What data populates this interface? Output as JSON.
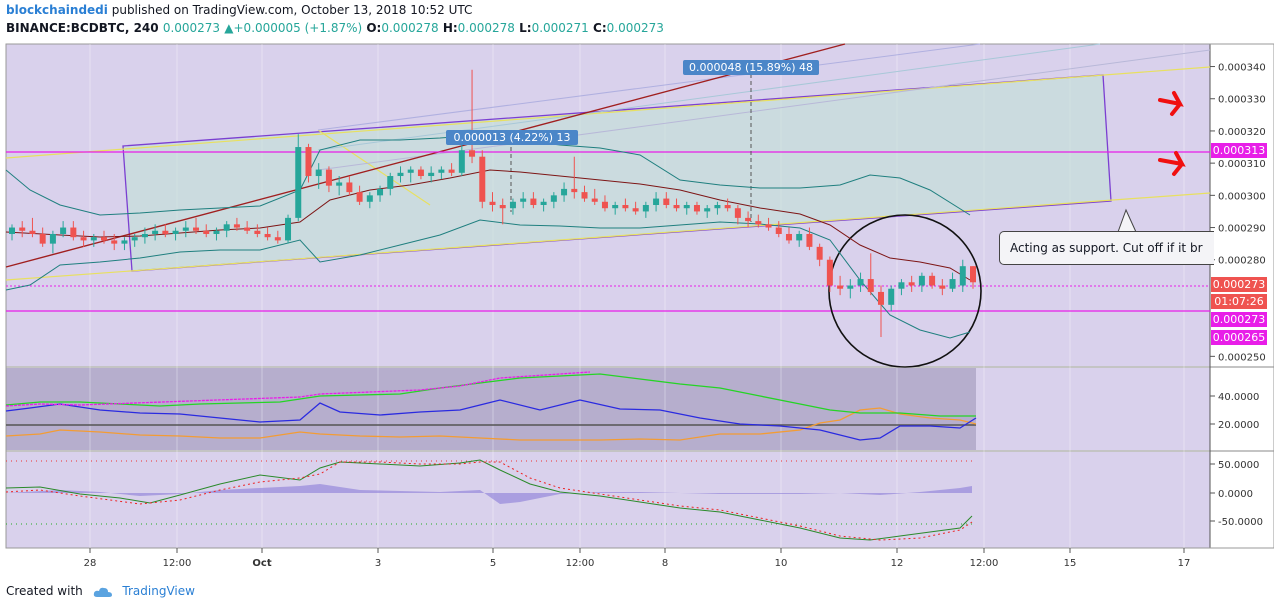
{
  "header": {
    "author": "blockchaindedi",
    "published_text": "published on TradingView.com, October 13, 2018 10:52 UTC",
    "symbol": "BINANCE:BCDBTC, 240",
    "last": "0.000273",
    "change": "+0.000005 (+1.87%)",
    "o_label": "O:",
    "o_value": "0.000278",
    "h_label": "H:",
    "h_value": "0.000278",
    "l_label": "L:",
    "l_value": "0.000271",
    "c_label": "C:",
    "c_value": "0.000273"
  },
  "footer": {
    "created_with": "Created with",
    "brand": "TradingView"
  },
  "annotations": {
    "callout": "Acting as support. Cut off if it br",
    "measure_top": "0.000048 (15.89%) 48",
    "measure_mid": "0.000013 (4.22%) 13"
  },
  "price_badges": {
    "line_313": "0.000313",
    "last": "0.000273",
    "countdown": "01:07:26",
    "line_273": "0.000273",
    "low": "0.000265"
  },
  "colors": {
    "up": "#26a69a",
    "down": "#ef5350",
    "magenta": "#e81ee8",
    "bg": "#d9d1ec"
  },
  "chart_data": {
    "type": "candlestick",
    "title": "",
    "xaxis": {
      "tick_labels": [
        "28",
        "12:00",
        "Oct",
        "3",
        "5",
        "12:00",
        "8",
        "10",
        "12",
        "12:00",
        "15",
        "17"
      ]
    },
    "yaxis": {
      "range": [
        0.000247,
        0.000347
      ],
      "tick_labels": [
        "0.000340",
        "0.000330",
        "0.000320",
        "0.000310",
        "0.000300",
        "0.000290",
        "0.000280",
        "0.000250"
      ]
    },
    "horizontal_levels": [
      0.000313,
      0.000273
    ],
    "series": [
      {
        "name": "BCDBTC",
        "ohlc": [
          [
            0.000288,
            0.000291,
            0.000286,
            0.00029
          ],
          [
            0.00029,
            0.000292,
            0.000287,
            0.000289
          ],
          [
            0.000289,
            0.000293,
            0.000287,
            0.000288
          ],
          [
            0.000288,
            0.00029,
            0.000284,
            0.000285
          ],
          [
            0.000285,
            0.000289,
            0.000282,
            0.000288
          ],
          [
            0.000288,
            0.000292,
            0.000287,
            0.00029
          ],
          [
            0.00029,
            0.000292,
            0.000286,
            0.000287
          ],
          [
            0.000287,
            0.000289,
            0.000284,
            0.000286
          ],
          [
            0.000286,
            0.000288,
            0.000284,
            0.000287
          ],
          [
            0.000287,
            0.000289,
            0.000285,
            0.000286
          ],
          [
            0.000286,
            0.000288,
            0.000283,
            0.000285
          ],
          [
            0.000285,
            0.000287,
            0.000283,
            0.000286
          ],
          [
            0.000286,
            0.000288,
            0.000284,
            0.000287
          ],
          [
            0.000287,
            0.00029,
            0.000285,
            0.000288
          ],
          [
            0.000288,
            0.000291,
            0.000286,
            0.000289
          ],
          [
            0.000289,
            0.000291,
            0.000287,
            0.000288
          ],
          [
            0.000288,
            0.00029,
            0.000286,
            0.000289
          ],
          [
            0.000289,
            0.000292,
            0.000287,
            0.00029
          ],
          [
            0.00029,
            0.000293,
            0.000288,
            0.000289
          ],
          [
            0.000289,
            0.000291,
            0.000287,
            0.000288
          ],
          [
            0.000288,
            0.00029,
            0.000286,
            0.000289
          ],
          [
            0.000289,
            0.000292,
            0.000287,
            0.000291
          ],
          [
            0.000291,
            0.000293,
            0.000289,
            0.00029
          ],
          [
            0.00029,
            0.000292,
            0.000288,
            0.000289
          ],
          [
            0.000289,
            0.000291,
            0.000287,
            0.000288
          ],
          [
            0.000288,
            0.00029,
            0.000286,
            0.000287
          ],
          [
            0.000287,
            0.000289,
            0.000285,
            0.000286
          ],
          [
            0.000286,
            0.000294,
            0.000285,
            0.000293
          ],
          [
            0.000293,
            0.000319,
            0.000292,
            0.000315
          ],
          [
            0.000315,
            0.000316,
            0.000304,
            0.000306
          ],
          [
            0.000306,
            0.00031,
            0.000302,
            0.000308
          ],
          [
            0.000308,
            0.000309,
            0.000301,
            0.000303
          ],
          [
            0.000303,
            0.000306,
            0.0003,
            0.000304
          ],
          [
            0.000304,
            0.000306,
            0.0003,
            0.000301
          ],
          [
            0.000301,
            0.000303,
            0.000297,
            0.000298
          ],
          [
            0.000298,
            0.000301,
            0.000296,
            0.0003
          ],
          [
            0.0003,
            0.000303,
            0.000298,
            0.000302
          ],
          [
            0.000302,
            0.000307,
            0.0003,
            0.000306
          ],
          [
            0.000306,
            0.000309,
            0.000304,
            0.000307
          ],
          [
            0.000307,
            0.000309,
            0.000304,
            0.000308
          ],
          [
            0.000308,
            0.000309,
            0.000305,
            0.000306
          ],
          [
            0.000306,
            0.000309,
            0.000304,
            0.000307
          ],
          [
            0.000307,
            0.000309,
            0.000305,
            0.000308
          ],
          [
            0.000308,
            0.00031,
            0.000306,
            0.000307
          ],
          [
            0.000307,
            0.00032,
            0.000306,
            0.000314
          ],
          [
            0.000314,
            0.000339,
            0.00031,
            0.000312
          ],
          [
            0.000312,
            0.000314,
            0.000296,
            0.000298
          ],
          [
            0.000298,
            0.000301,
            0.000295,
            0.000297
          ],
          [
            0.000297,
            0.000299,
            0.000291,
            0.000296
          ],
          [
            0.000296,
            0.000299,
            0.000294,
            0.000298
          ],
          [
            0.000298,
            0.000301,
            0.000296,
            0.000299
          ],
          [
            0.000299,
            0.000301,
            0.000296,
            0.000297
          ],
          [
            0.000297,
            0.000299,
            0.000295,
            0.000298
          ],
          [
            0.000298,
            0.000301,
            0.000296,
            0.0003
          ],
          [
            0.0003,
            0.000304,
            0.000298,
            0.000302
          ],
          [
            0.000302,
            0.000312,
            0.000299,
            0.000301
          ],
          [
            0.000301,
            0.000303,
            0.000298,
            0.000299
          ],
          [
            0.000299,
            0.000302,
            0.000297,
            0.000298
          ],
          [
            0.000298,
            0.0003,
            0.000295,
            0.000296
          ],
          [
            0.000296,
            0.000298,
            0.000294,
            0.000297
          ],
          [
            0.000297,
            0.000299,
            0.000295,
            0.000296
          ],
          [
            0.000296,
            0.000298,
            0.000294,
            0.000295
          ],
          [
            0.000295,
            0.000298,
            0.000293,
            0.000297
          ],
          [
            0.000297,
            0.000301,
            0.000295,
            0.000299
          ],
          [
            0.000299,
            0.000301,
            0.000296,
            0.000297
          ],
          [
            0.000297,
            0.000299,
            0.000295,
            0.000296
          ],
          [
            0.000296,
            0.000298,
            0.000294,
            0.000297
          ],
          [
            0.000297,
            0.000298,
            0.000294,
            0.000295
          ],
          [
            0.000295,
            0.000297,
            0.000293,
            0.000296
          ],
          [
            0.000296,
            0.000298,
            0.000294,
            0.000297
          ],
          [
            0.000297,
            0.000299,
            0.000295,
            0.000296
          ],
          [
            0.000296,
            0.000297,
            0.000291,
            0.000293
          ],
          [
            0.000293,
            0.000295,
            0.00029,
            0.000292
          ],
          [
            0.000292,
            0.000294,
            0.00029,
            0.000291
          ],
          [
            0.000291,
            0.000293,
            0.000289,
            0.00029
          ],
          [
            0.00029,
            0.000292,
            0.000287,
            0.000288
          ],
          [
            0.000288,
            0.00029,
            0.000285,
            0.000286
          ],
          [
            0.000286,
            0.000289,
            0.000284,
            0.000288
          ],
          [
            0.000288,
            0.00029,
            0.000283,
            0.000284
          ],
          [
            0.000284,
            0.000285,
            0.000278,
            0.00028
          ],
          [
            0.00028,
            0.000281,
            0.00027,
            0.000272
          ],
          [
            0.000272,
            0.000275,
            0.000269,
            0.000271
          ],
          [
            0.000271,
            0.000274,
            0.000268,
            0.000272
          ],
          [
            0.000272,
            0.000276,
            0.00027,
            0.000274
          ],
          [
            0.000274,
            0.000282,
            0.000269,
            0.00027
          ],
          [
            0.00027,
            0.000272,
            0.000256,
            0.000266
          ],
          [
            0.000266,
            0.000272,
            0.000264,
            0.000271
          ],
          [
            0.000271,
            0.000274,
            0.000269,
            0.000273
          ],
          [
            0.000273,
            0.000275,
            0.00027,
            0.000272
          ],
          [
            0.000272,
            0.000276,
            0.00027,
            0.000275
          ],
          [
            0.000275,
            0.000276,
            0.000271,
            0.000272
          ],
          [
            0.000272,
            0.000274,
            0.000269,
            0.000271
          ],
          [
            0.000271,
            0.000276,
            0.00027,
            0.000274
          ],
          [
            0.000272,
            0.00028,
            0.00027,
            0.000278
          ],
          [
            0.000278,
            0.000278,
            0.000271,
            0.000273
          ]
        ]
      }
    ],
    "indicator_1": {
      "tick_labels": [
        "40.0000",
        "20.0000"
      ],
      "level": 20
    },
    "indicator_2": {
      "tick_labels": [
        "50.0000",
        "0.0000",
        "-50.0000"
      ]
    }
  }
}
